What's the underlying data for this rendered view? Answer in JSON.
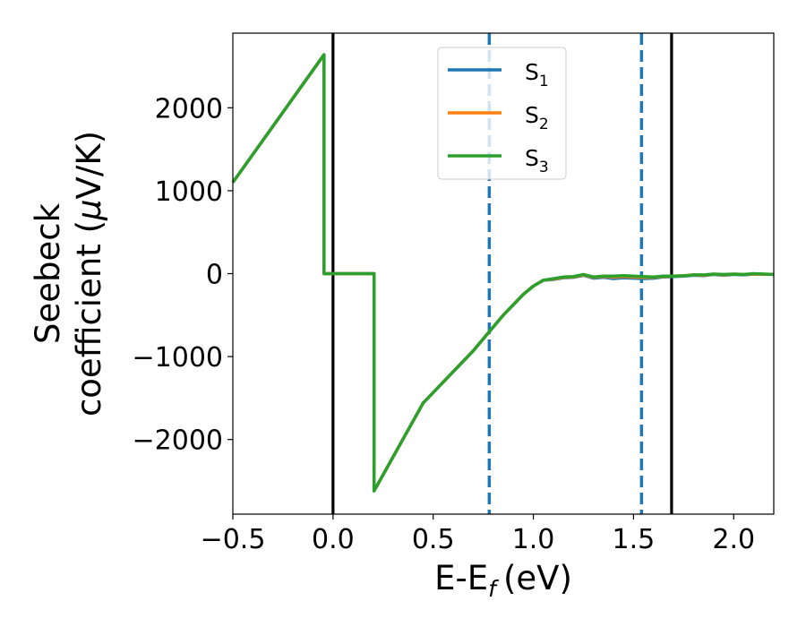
{
  "chart_data": {
    "type": "line",
    "title": "",
    "xlabel": {
      "main": "E-E",
      "sub": "f",
      "unit": "(eV)"
    },
    "ylabel": {
      "line1": "Seebeck",
      "line2": "coefficient  (",
      "mu": "μ",
      "unit": "V/K)"
    },
    "xlim": [
      -0.5,
      2.2
    ],
    "ylim": [
      -2900,
      2900
    ],
    "xticks": [
      -0.5,
      0.0,
      0.5,
      1.0,
      1.5,
      2.0
    ],
    "xtick_labels": [
      "−0.5",
      "0.0",
      "0.5",
      "1.0",
      "1.5",
      "2.0"
    ],
    "yticks": [
      2000,
      1000,
      0,
      -1000,
      -2000
    ],
    "ytick_labels": [
      "2000",
      "1000",
      "0",
      "−1000",
      "−2000"
    ],
    "grid": false,
    "legend_position": "top-center",
    "vlines": [
      {
        "x": 0.0,
        "style": "solid",
        "color": "#000000"
      },
      {
        "x": 1.69,
        "style": "solid",
        "color": "#000000"
      },
      {
        "x": 0.78,
        "style": "dashed",
        "color": "#1f77b4"
      },
      {
        "x": 1.54,
        "style": "dashed",
        "color": "#1f77b4"
      }
    ],
    "series": [
      {
        "name": "S",
        "sub": "1",
        "color": "#1f77b4",
        "x": [
          -0.5,
          -0.045,
          -0.045,
          0.205,
          0.205,
          0.45,
          0.7,
          0.85,
          0.95,
          1.0,
          1.05,
          1.1,
          1.15,
          1.2,
          1.25,
          1.3,
          1.35,
          1.4,
          1.45,
          1.5,
          1.55,
          1.6,
          1.65,
          1.7,
          1.75,
          1.8,
          1.85,
          1.9,
          1.95,
          2.0,
          2.05,
          2.1,
          2.2
        ],
        "y": [
          1100,
          2640,
          0,
          0,
          -2620,
          -1560,
          -930,
          -500,
          -250,
          -150,
          -80,
          -70,
          -50,
          -45,
          -20,
          -55,
          -45,
          -60,
          -50,
          -55,
          -60,
          -55,
          -40,
          -35,
          -30,
          -20,
          -25,
          -10,
          -20,
          -10,
          -15,
          -5,
          -10
        ]
      },
      {
        "name": "S",
        "sub": "2",
        "color": "#ff7f0e",
        "x": [
          -0.5,
          -0.045,
          -0.045,
          0.205,
          0.205,
          0.45,
          0.7,
          0.85,
          0.95,
          1.0,
          1.05,
          1.1,
          1.15,
          1.2,
          1.25,
          1.3,
          1.35,
          1.4,
          1.45,
          1.5,
          1.55,
          1.6,
          1.65,
          1.7,
          1.75,
          1.8,
          1.85,
          1.9,
          1.95,
          2.0,
          2.05,
          2.1,
          2.2
        ],
        "y": [
          1100,
          2640,
          0,
          0,
          -2620,
          -1560,
          -930,
          -500,
          -250,
          -150,
          -80,
          -65,
          -45,
          -40,
          -15,
          -45,
          -35,
          -40,
          -35,
          -40,
          -45,
          -45,
          -35,
          -30,
          -25,
          -15,
          -20,
          -5,
          -15,
          -5,
          -10,
          -5,
          -10
        ]
      },
      {
        "name": "S",
        "sub": "3",
        "color": "#2ca02c",
        "x": [
          -0.5,
          -0.045,
          -0.045,
          0.205,
          0.205,
          0.45,
          0.7,
          0.85,
          0.95,
          1.0,
          1.05,
          1.1,
          1.15,
          1.2,
          1.25,
          1.3,
          1.35,
          1.4,
          1.45,
          1.5,
          1.55,
          1.6,
          1.65,
          1.7,
          1.75,
          1.8,
          1.85,
          1.9,
          1.95,
          2.0,
          2.05,
          2.1,
          2.2
        ],
        "y": [
          1100,
          2640,
          0,
          0,
          -2620,
          -1560,
          -930,
          -500,
          -250,
          -150,
          -80,
          -60,
          -40,
          -35,
          -10,
          -40,
          -30,
          -30,
          -25,
          -30,
          -35,
          -40,
          -30,
          -30,
          -25,
          -15,
          -15,
          -5,
          -10,
          -5,
          -10,
          0,
          -10
        ]
      }
    ]
  }
}
